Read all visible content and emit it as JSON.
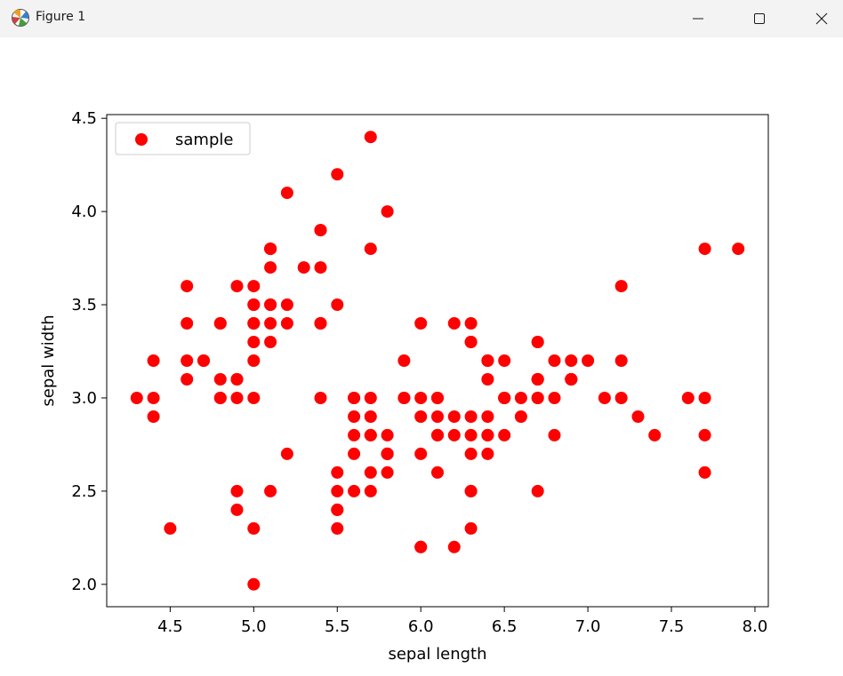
{
  "window": {
    "title": "Figure 1",
    "icons": {
      "app": "matplotlib-figure-icon",
      "minimize": "minimize-icon",
      "maximize": "maximize-icon",
      "close": "close-icon"
    }
  },
  "chart_data": {
    "type": "scatter",
    "xlabel": "sepal length",
    "ylabel": "sepal width",
    "xlim": [
      4.12,
      8.08
    ],
    "ylim": [
      1.88,
      4.52
    ],
    "xticks": [
      "4.5",
      "5.0",
      "5.5",
      "6.0",
      "6.5",
      "7.0",
      "7.5",
      "8.0"
    ],
    "yticks": [
      "2.0",
      "2.5",
      "3.0",
      "3.5",
      "4.0",
      "4.5"
    ],
    "xtick_values": [
      4.5,
      5.0,
      5.5,
      6.0,
      6.5,
      7.0,
      7.5,
      8.0
    ],
    "ytick_values": [
      2.0,
      2.5,
      3.0,
      3.5,
      4.0,
      4.5
    ],
    "grid": false,
    "legend": {
      "placement": "upper-left",
      "entries": [
        "sample"
      ]
    },
    "series": [
      {
        "name": "sample",
        "color": "#ff0000",
        "points": [
          [
            5.1,
            3.5
          ],
          [
            4.9,
            3.0
          ],
          [
            4.7,
            3.2
          ],
          [
            4.6,
            3.1
          ],
          [
            5.0,
            3.6
          ],
          [
            5.4,
            3.9
          ],
          [
            4.6,
            3.4
          ],
          [
            5.0,
            3.4
          ],
          [
            4.4,
            2.9
          ],
          [
            4.9,
            3.1
          ],
          [
            5.4,
            3.7
          ],
          [
            4.8,
            3.4
          ],
          [
            4.8,
            3.0
          ],
          [
            4.3,
            3.0
          ],
          [
            5.8,
            4.0
          ],
          [
            5.7,
            4.4
          ],
          [
            5.4,
            3.9
          ],
          [
            5.1,
            3.5
          ],
          [
            5.7,
            3.8
          ],
          [
            5.1,
            3.8
          ],
          [
            5.4,
            3.4
          ],
          [
            5.1,
            3.7
          ],
          [
            4.6,
            3.6
          ],
          [
            5.1,
            3.3
          ],
          [
            4.8,
            3.4
          ],
          [
            5.0,
            3.0
          ],
          [
            5.0,
            3.4
          ],
          [
            5.2,
            3.5
          ],
          [
            5.2,
            3.4
          ],
          [
            4.7,
            3.2
          ],
          [
            4.8,
            3.1
          ],
          [
            5.4,
            3.4
          ],
          [
            5.2,
            4.1
          ],
          [
            5.5,
            4.2
          ],
          [
            4.9,
            3.1
          ],
          [
            5.0,
            3.2
          ],
          [
            5.5,
            3.5
          ],
          [
            4.9,
            3.6
          ],
          [
            4.4,
            3.0
          ],
          [
            5.1,
            3.4
          ],
          [
            5.0,
            3.5
          ],
          [
            4.5,
            2.3
          ],
          [
            4.4,
            3.2
          ],
          [
            5.0,
            3.5
          ],
          [
            5.1,
            3.8
          ],
          [
            4.8,
            3.0
          ],
          [
            5.1,
            3.8
          ],
          [
            4.6,
            3.2
          ],
          [
            5.3,
            3.7
          ],
          [
            5.0,
            3.3
          ],
          [
            7.0,
            3.2
          ],
          [
            6.4,
            3.2
          ],
          [
            6.9,
            3.1
          ],
          [
            5.5,
            2.3
          ],
          [
            6.5,
            2.8
          ],
          [
            5.7,
            2.8
          ],
          [
            6.3,
            3.3
          ],
          [
            4.9,
            2.4
          ],
          [
            6.6,
            2.9
          ],
          [
            5.2,
            2.7
          ],
          [
            5.0,
            2.0
          ],
          [
            5.9,
            3.0
          ],
          [
            6.0,
            2.2
          ],
          [
            6.1,
            2.9
          ],
          [
            5.6,
            2.9
          ],
          [
            6.7,
            3.1
          ],
          [
            5.6,
            3.0
          ],
          [
            5.8,
            2.7
          ],
          [
            6.2,
            2.2
          ],
          [
            5.6,
            2.5
          ],
          [
            5.9,
            3.2
          ],
          [
            6.1,
            2.8
          ],
          [
            6.3,
            2.5
          ],
          [
            6.1,
            2.8
          ],
          [
            6.4,
            2.9
          ],
          [
            6.6,
            3.0
          ],
          [
            6.8,
            2.8
          ],
          [
            6.7,
            3.0
          ],
          [
            6.0,
            2.9
          ],
          [
            5.7,
            2.6
          ],
          [
            5.5,
            2.4
          ],
          [
            5.5,
            2.4
          ],
          [
            5.8,
            2.7
          ],
          [
            6.0,
            2.7
          ],
          [
            5.4,
            3.0
          ],
          [
            6.0,
            3.4
          ],
          [
            6.7,
            3.1
          ],
          [
            6.3,
            2.3
          ],
          [
            5.6,
            3.0
          ],
          [
            5.5,
            2.5
          ],
          [
            5.5,
            2.6
          ],
          [
            6.1,
            3.0
          ],
          [
            5.8,
            2.6
          ],
          [
            5.0,
            2.3
          ],
          [
            5.6,
            2.7
          ],
          [
            5.7,
            3.0
          ],
          [
            5.7,
            2.9
          ],
          [
            6.2,
            2.9
          ],
          [
            5.1,
            2.5
          ],
          [
            5.7,
            2.8
          ],
          [
            6.3,
            3.3
          ],
          [
            5.8,
            2.7
          ],
          [
            7.1,
            3.0
          ],
          [
            6.3,
            2.9
          ],
          [
            6.5,
            3.0
          ],
          [
            7.6,
            3.0
          ],
          [
            4.9,
            2.5
          ],
          [
            7.3,
            2.9
          ],
          [
            6.7,
            2.5
          ],
          [
            7.2,
            3.6
          ],
          [
            6.5,
            3.2
          ],
          [
            6.4,
            2.7
          ],
          [
            6.8,
            3.0
          ],
          [
            5.7,
            2.5
          ],
          [
            5.8,
            2.8
          ],
          [
            6.4,
            3.2
          ],
          [
            6.5,
            3.0
          ],
          [
            7.7,
            3.8
          ],
          [
            7.7,
            2.6
          ],
          [
            6.0,
            2.2
          ],
          [
            6.9,
            3.2
          ],
          [
            5.6,
            2.8
          ],
          [
            7.7,
            2.8
          ],
          [
            6.3,
            2.7
          ],
          [
            6.7,
            3.3
          ],
          [
            7.2,
            3.2
          ],
          [
            6.2,
            2.8
          ],
          [
            6.1,
            3.0
          ],
          [
            6.4,
            2.8
          ],
          [
            7.2,
            3.0
          ],
          [
            7.4,
            2.8
          ],
          [
            7.9,
            3.8
          ],
          [
            6.4,
            2.8
          ],
          [
            6.3,
            2.8
          ],
          [
            6.1,
            2.6
          ],
          [
            7.7,
            3.0
          ],
          [
            6.3,
            3.4
          ],
          [
            6.4,
            3.1
          ],
          [
            6.0,
            3.0
          ],
          [
            6.9,
            3.1
          ],
          [
            6.7,
            3.1
          ],
          [
            6.9,
            3.1
          ],
          [
            5.8,
            2.7
          ],
          [
            6.8,
            3.2
          ],
          [
            6.7,
            3.3
          ],
          [
            6.7,
            3.0
          ],
          [
            6.3,
            2.5
          ],
          [
            6.5,
            3.0
          ],
          [
            6.2,
            3.4
          ],
          [
            5.9,
            3.0
          ]
        ]
      }
    ]
  }
}
